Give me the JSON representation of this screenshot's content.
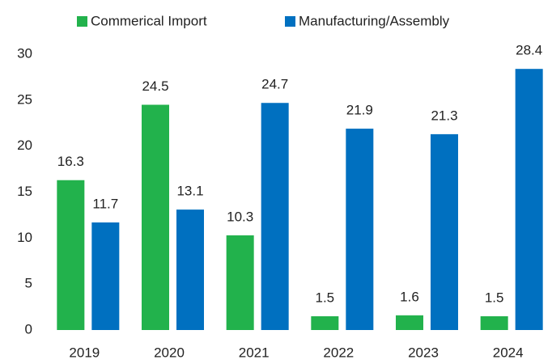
{
  "chart_data": {
    "type": "bar",
    "categories": [
      "2019",
      "2020",
      "2021",
      "2022",
      "2023",
      "2024"
    ],
    "series": [
      {
        "name": "Commerical Import",
        "color": "#22b24c",
        "values": [
          16.3,
          24.5,
          10.3,
          1.5,
          1.6,
          1.5
        ]
      },
      {
        "name": "Manufacturing/Assembly",
        "color": "#0070c0",
        "values": [
          11.7,
          13.1,
          24.7,
          21.9,
          21.3,
          28.4
        ]
      }
    ],
    "ylim": [
      0,
      30
    ],
    "yticks": [
      0,
      5,
      10,
      15,
      20,
      25,
      30
    ],
    "grid": false,
    "legend": "top"
  }
}
